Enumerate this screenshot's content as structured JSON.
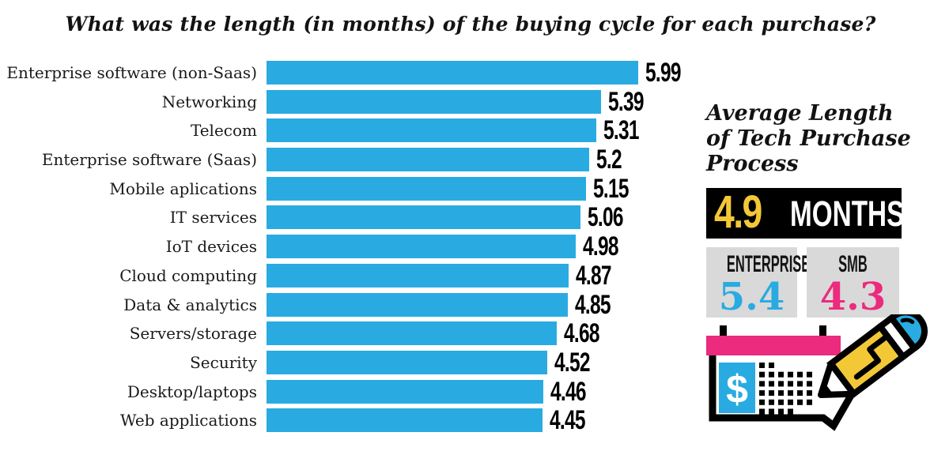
{
  "title": "What was the length (in months) of the buying cycle for each purchase?",
  "chart_data": {
    "type": "bar",
    "orientation": "horizontal",
    "title": "What was the length (in months) of the buying cycle for each purchase?",
    "xlabel": "",
    "ylabel": "",
    "xlim": [
      0,
      6.2
    ],
    "grid": false,
    "legend": false,
    "bar_color": "#29ABE2",
    "categories": [
      "Enterprise software (non-Saas)",
      "Networking",
      "Telecom",
      "Enterprise software (Saas)",
      "Mobile aplications",
      "IT services",
      "IoT devices",
      "Cloud computing",
      "Data & analytics",
      "Servers/storage",
      "Security",
      "Desktop/laptops",
      "Web applications"
    ],
    "values": [
      5.99,
      5.39,
      5.31,
      5.2,
      5.15,
      5.06,
      4.98,
      4.87,
      4.85,
      4.68,
      4.52,
      4.46,
      4.45
    ],
    "value_labels": [
      "5.99",
      "5.39",
      "5.31",
      "5.2",
      "5.15",
      "5.06",
      "4.98",
      "4.87",
      "4.85",
      "4.68",
      "4.52",
      "4.46",
      "4.45"
    ]
  },
  "panel": {
    "heading_lines": [
      "Average Length",
      "of Tech Purchase",
      "Process"
    ],
    "average": {
      "value": "4.9",
      "unit": "MONTHS",
      "value_color": "#F3C837",
      "bg": "#000000"
    },
    "stats": [
      {
        "label": "ENTERPRISE",
        "value": "5.4",
        "value_color": "#29ABE2",
        "bg": "#D9D9D9"
      },
      {
        "label": "SMB",
        "value": "4.3",
        "value_color": "#EC2A7E",
        "bg": "#D9D9D9"
      }
    ],
    "illustration": {
      "name": "calendar-pencil-icon",
      "dollar_sign": "$",
      "calendar_header_color": "#EC2A7E",
      "pencil_body_color": "#F3C837",
      "eraser_color": "#29ABE2"
    }
  },
  "colors": {
    "bar_blue": "#29ABE2",
    "pink": "#EC2A7E",
    "yellow": "#F3C837",
    "box_gray": "#D9D9D9",
    "text_black": "#1A1A1A"
  }
}
